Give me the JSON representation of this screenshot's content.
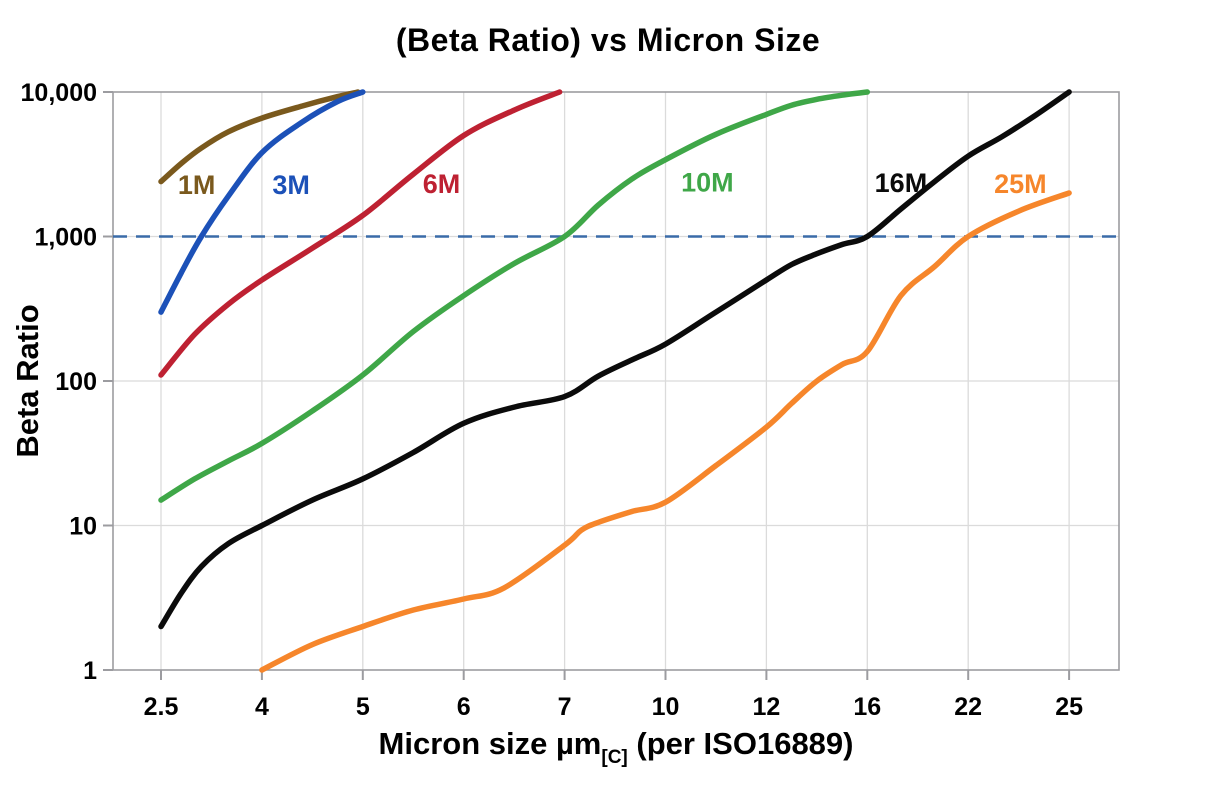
{
  "chart_data": {
    "type": "line",
    "title": "(Beta Ratio) vs Micron Size",
    "ylabel": "Beta Ratio",
    "xlabel": "Micron size µm[C] (per ISO16889)",
    "x_scale": "category",
    "categories": [
      "2.5",
      "4",
      "5",
      "6",
      "7",
      "10",
      "12",
      "16",
      "22",
      "25"
    ],
    "y_scale": "log10",
    "ylim": [
      1,
      10000
    ],
    "y_tick_labels": [
      "1",
      "10",
      "100",
      "1,000",
      "10,000"
    ],
    "grid": true,
    "legend_position": "inline-labels",
    "reference_line": {
      "value": 1000,
      "style": "dashed",
      "color": "#3A6BA8"
    },
    "series": [
      {
        "name": "1M",
        "color": "#7A591D",
        "label_at": {
          "x": 3.03,
          "y": 2300
        },
        "points": [
          [
            2.5,
            2400
          ],
          [
            2.8,
            3200
          ],
          [
            3.1,
            4100
          ],
          [
            3.5,
            5300
          ],
          [
            4,
            6600
          ],
          [
            4.4,
            8000
          ],
          [
            4.75,
            9300
          ],
          [
            4.95,
            10000
          ]
        ]
      },
      {
        "name": "3M",
        "color": "#1C51B8",
        "label_at": {
          "x": 4.29,
          "y": 2300
        },
        "points": [
          [
            2.5,
            300
          ],
          [
            2.8,
            560
          ],
          [
            3.1,
            1000
          ],
          [
            3.5,
            1900
          ],
          [
            4,
            3800
          ],
          [
            4.4,
            6200
          ],
          [
            4.75,
            8600
          ],
          [
            5,
            10000
          ]
        ]
      },
      {
        "name": "6M",
        "color": "#BE2132",
        "label_at": {
          "x": 5.78,
          "y": 2350
        },
        "points": [
          [
            2.5,
            110
          ],
          [
            3,
            210
          ],
          [
            3.5,
            340
          ],
          [
            4,
            500
          ],
          [
            4.5,
            830
          ],
          [
            5,
            1400
          ],
          [
            5.5,
            2700
          ],
          [
            6,
            5000
          ],
          [
            6.5,
            7500
          ],
          [
            6.95,
            10000
          ]
        ]
      },
      {
        "name": "10M",
        "color": "#3FA748",
        "label_at": {
          "x": 10.83,
          "y": 2400
        },
        "points": [
          [
            2.5,
            15
          ],
          [
            3,
            21
          ],
          [
            3.5,
            28
          ],
          [
            4,
            37
          ],
          [
            4.5,
            62
          ],
          [
            5,
            110
          ],
          [
            5.5,
            220
          ],
          [
            6,
            390
          ],
          [
            6.5,
            650
          ],
          [
            7,
            1000
          ],
          [
            8,
            1650
          ],
          [
            9,
            2500
          ],
          [
            10,
            3400
          ],
          [
            11,
            5100
          ],
          [
            12,
            7000
          ],
          [
            13,
            8100
          ],
          [
            14,
            8900
          ],
          [
            15,
            9500
          ],
          [
            16,
            10000
          ]
        ]
      },
      {
        "name": "16M",
        "color": "#0B0B0B",
        "label_at": {
          "x": 18,
          "y": 2380
        },
        "points": [
          [
            2.5,
            2
          ],
          [
            2.8,
            3.4
          ],
          [
            3.1,
            5.2
          ],
          [
            3.5,
            7.5
          ],
          [
            4,
            10
          ],
          [
            4.5,
            15
          ],
          [
            5,
            21
          ],
          [
            5.5,
            32
          ],
          [
            6,
            51
          ],
          [
            6.5,
            66
          ],
          [
            7,
            78
          ],
          [
            8,
            108
          ],
          [
            9,
            140
          ],
          [
            10,
            180
          ],
          [
            11,
            300
          ],
          [
            12,
            500
          ],
          [
            13,
            640
          ],
          [
            14,
            760
          ],
          [
            15,
            880
          ],
          [
            16,
            1000
          ],
          [
            18,
            1550
          ],
          [
            20,
            2400
          ],
          [
            22,
            3600
          ],
          [
            23,
            4900
          ],
          [
            24,
            6900
          ],
          [
            25,
            10000
          ]
        ]
      },
      {
        "name": "25M",
        "color": "#F6862B",
        "label_at": {
          "x": 23.55,
          "y": 2350
        },
        "points": [
          [
            4,
            1
          ],
          [
            4.5,
            1.5
          ],
          [
            5,
            2
          ],
          [
            5.5,
            2.6
          ],
          [
            6,
            3.1
          ],
          [
            6.4,
            3.7
          ],
          [
            7,
            7.3
          ],
          [
            7.5,
            9.3
          ],
          [
            8,
            10.5
          ],
          [
            9,
            12.5
          ],
          [
            10,
            14.5
          ],
          [
            11,
            26
          ],
          [
            12,
            48
          ],
          [
            13,
            70
          ],
          [
            14,
            100
          ],
          [
            15,
            130
          ],
          [
            16,
            160
          ],
          [
            18,
            390
          ],
          [
            20,
            620
          ],
          [
            22,
            1000
          ],
          [
            23.5,
            1500
          ],
          [
            25,
            2000
          ]
        ]
      }
    ]
  },
  "axes": {
    "x_title_main": "Micron size µm",
    "x_title_sub": "[C]",
    "x_title_rest": " (per ISO16889)"
  },
  "style_colors": {
    "gridline": "#DBDBDB",
    "axis_frame": "#9C9CA0",
    "text": "#000000"
  }
}
